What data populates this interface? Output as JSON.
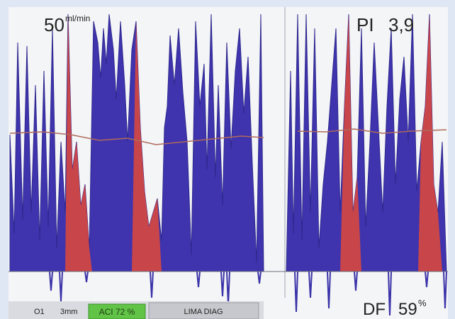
{
  "flow": {
    "value": "50",
    "unit": "ml/min"
  },
  "pi": {
    "label": "PI",
    "value": "3,9"
  },
  "df": {
    "label": "DF",
    "value": "59",
    "unit": "%"
  },
  "status_bar": {
    "channel": "O1",
    "probe": "3mm",
    "aci": "ACI 72 %",
    "vessel": "LIMA DIAG"
  }
}
